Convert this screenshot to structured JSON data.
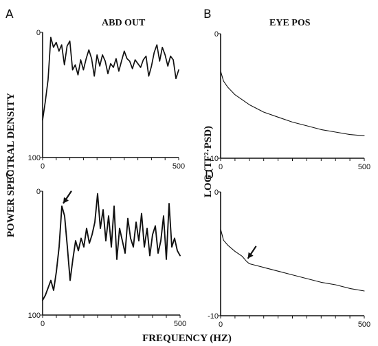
{
  "chart_data": [
    {
      "panel": "A",
      "title": "ABD OUT",
      "type": "line",
      "xlim": [
        0,
        500
      ],
      "ylim": [
        0,
        100
      ],
      "x_ticks": [
        "0",
        "500"
      ],
      "y_ticks": [
        "0",
        "100"
      ],
      "series": [
        {
          "x": [
            0,
            10,
            20,
            30,
            40,
            50,
            60,
            70,
            80,
            90,
            100,
            110,
            120,
            130,
            140,
            150,
            160,
            170,
            180,
            190,
            200,
            210,
            220,
            230,
            240,
            250,
            260,
            270,
            280,
            290,
            300,
            310,
            320,
            330,
            340,
            350,
            360,
            370,
            380,
            390,
            400,
            410,
            420,
            430,
            440,
            450,
            460,
            470,
            480,
            490,
            500
          ],
          "y": [
            30,
            45,
            62,
            96,
            88,
            92,
            85,
            90,
            74,
            89,
            93,
            70,
            74,
            66,
            78,
            70,
            79,
            86,
            79,
            65,
            82,
            73,
            82,
            77,
            67,
            75,
            72,
            79,
            69,
            77,
            85,
            79,
            77,
            71,
            78,
            75,
            72,
            78,
            81,
            65,
            73,
            84,
            90,
            77,
            88,
            82,
            73,
            81,
            78,
            63,
            70
          ]
        }
      ]
    },
    {
      "panel": "B",
      "title": "EYE POS",
      "type": "line",
      "xlim": [
        0,
        500
      ],
      "ylim": [
        -10,
        0
      ],
      "x_ticks": [
        "0",
        "500"
      ],
      "y_ticks": [
        "0",
        "-10"
      ],
      "series": [
        {
          "x": [
            0,
            10,
            25,
            50,
            75,
            100,
            150,
            200,
            250,
            300,
            350,
            400,
            450,
            500
          ],
          "y": [
            -3.0,
            -3.8,
            -4.3,
            -4.9,
            -5.3,
            -5.7,
            -6.3,
            -6.7,
            -7.1,
            -7.4,
            -7.7,
            -7.9,
            -8.1,
            -8.2
          ]
        }
      ]
    },
    {
      "panel": "C",
      "type": "line",
      "xlim": [
        0,
        500
      ],
      "ylim": [
        0,
        100
      ],
      "x_ticks": [
        "0",
        "500"
      ],
      "y_ticks": [
        "0",
        "100"
      ],
      "annotations": [
        {
          "type": "arrow",
          "x": 70,
          "y": 88
        }
      ],
      "series": [
        {
          "x": [
            0,
            10,
            20,
            30,
            40,
            50,
            60,
            70,
            80,
            90,
            100,
            110,
            120,
            130,
            140,
            150,
            160,
            170,
            180,
            190,
            200,
            210,
            220,
            230,
            240,
            250,
            260,
            270,
            280,
            290,
            300,
            310,
            320,
            330,
            340,
            350,
            360,
            370,
            380,
            390,
            400,
            410,
            420,
            430,
            440,
            450,
            460,
            470,
            480,
            490,
            500
          ],
          "y": [
            12,
            16,
            22,
            28,
            20,
            35,
            55,
            88,
            80,
            55,
            28,
            45,
            60,
            52,
            62,
            55,
            70,
            58,
            65,
            75,
            98,
            70,
            85,
            60,
            80,
            55,
            88,
            45,
            70,
            60,
            50,
            78,
            62,
            55,
            75,
            60,
            82,
            55,
            70,
            48,
            65,
            72,
            50,
            60,
            80,
            45,
            90,
            55,
            62,
            52,
            48
          ]
        }
      ]
    },
    {
      "panel": "D",
      "type": "line",
      "xlim": [
        0,
        500
      ],
      "ylim": [
        -10,
        0
      ],
      "x_ticks": [
        "0",
        "500"
      ],
      "y_ticks": [
        "0",
        "-10"
      ],
      "annotations": [
        {
          "type": "arrow",
          "x": 90,
          "y": -5.6
        }
      ],
      "series": [
        {
          "x": [
            0,
            10,
            25,
            50,
            75,
            90,
            100,
            150,
            200,
            250,
            300,
            350,
            400,
            450,
            500
          ],
          "y": [
            -3.0,
            -3.9,
            -4.3,
            -4.8,
            -5.2,
            -5.6,
            -5.8,
            -6.1,
            -6.4,
            -6.7,
            -7.0,
            -7.3,
            -7.5,
            -7.8,
            -8.0
          ]
        }
      ]
    }
  ],
  "figure": {
    "ylabel_left": "POWER SPECTRAL DENSITY",
    "ylabel_right": "LOG (TF²·PSD)",
    "xlabel": "FREQUENCY (HZ)"
  }
}
